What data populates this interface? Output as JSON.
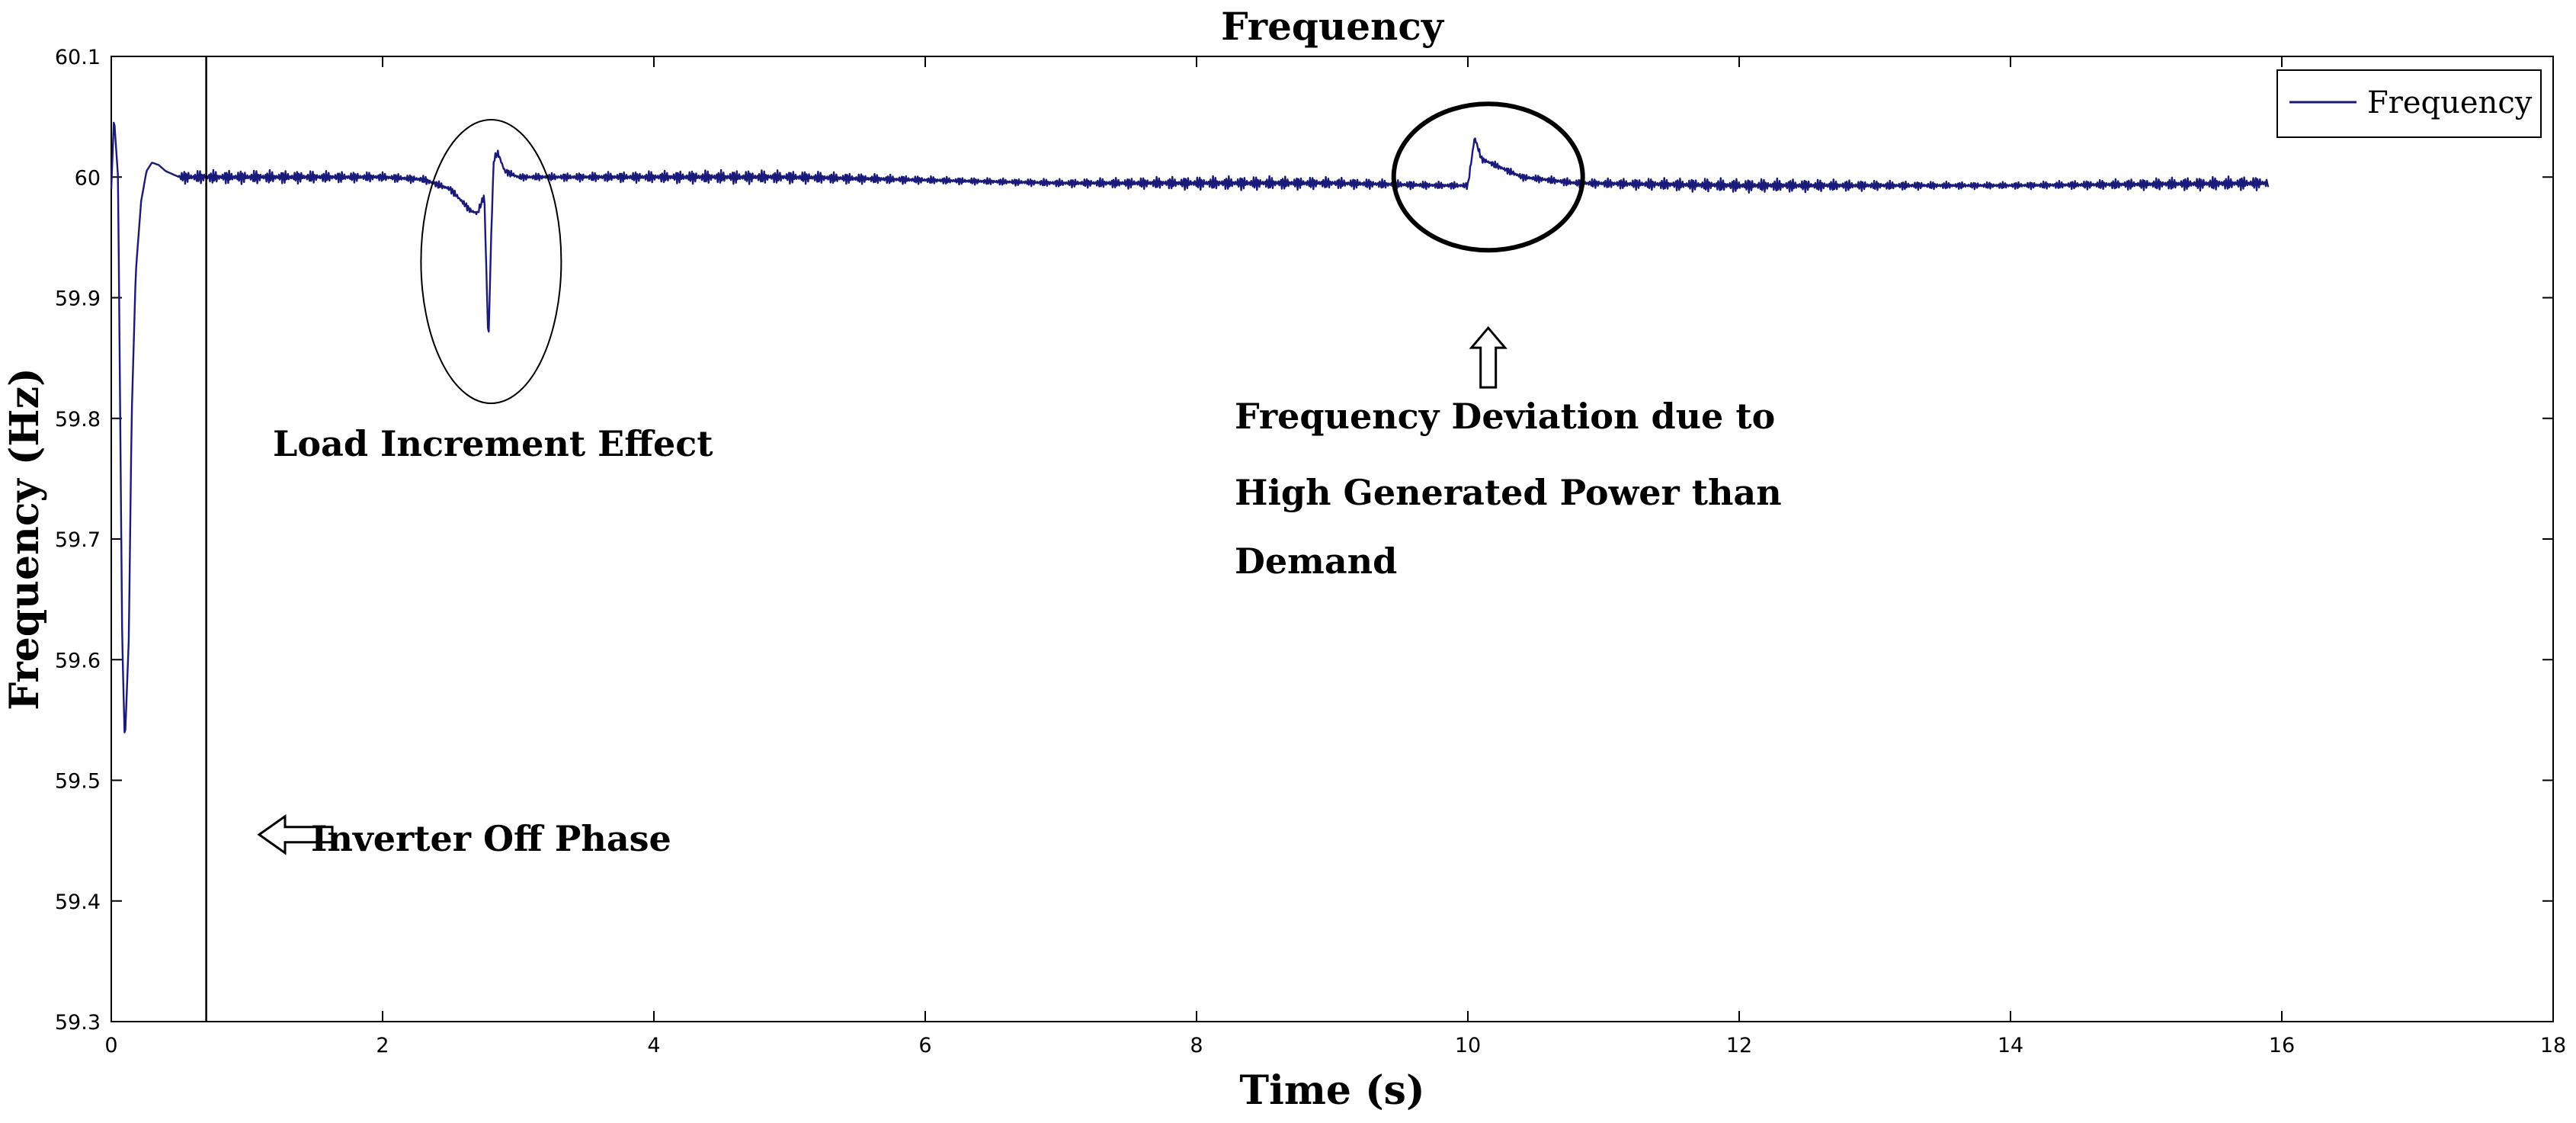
{
  "chart_data": {
    "type": "line",
    "title": "Frequency",
    "xlabel": "Time (s)",
    "ylabel": "Frequency (Hz)",
    "xlim": [
      0,
      18
    ],
    "ylim": [
      59.3,
      60.1
    ],
    "x_ticks": [
      0,
      2,
      4,
      6,
      8,
      10,
      12,
      14,
      16,
      18
    ],
    "y_ticks": [
      59.3,
      59.4,
      59.5,
      59.6,
      59.7,
      59.8,
      59.9,
      60,
      60.1
    ],
    "x_tick_labels": [
      "0",
      "2",
      "4",
      "6",
      "8",
      "10",
      "12",
      "14",
      "16",
      "18"
    ],
    "y_tick_labels": [
      "59.3",
      "59.4",
      "59.5",
      "59.6",
      "59.7",
      "59.8",
      "59.9",
      "60",
      "60.1"
    ],
    "grid": false,
    "legend": {
      "position": "top-right",
      "entries": [
        "Frequency"
      ]
    },
    "line_color": "#1a1a7a",
    "series": [
      {
        "name": "Frequency",
        "x": [
          0,
          0.02,
          0.05,
          0.08,
          0.1,
          0.13,
          0.15,
          0.18,
          0.22,
          0.26,
          0.3,
          0.35,
          0.4,
          0.5,
          0.6,
          0.7,
          1.0,
          1.5,
          2.0,
          2.3,
          2.5,
          2.6,
          2.65,
          2.7,
          2.75,
          2.78,
          2.8,
          2.82,
          2.85,
          2.9,
          3.0,
          3.5,
          5.0,
          7.0,
          9.0,
          9.8,
          10.0,
          10.05,
          10.1,
          10.2,
          10.4,
          10.8,
          12.0,
          14.0,
          15.9
        ],
        "y": [
          59.99,
          60.05,
          60.0,
          59.62,
          59.53,
          59.62,
          59.8,
          59.92,
          59.98,
          60.005,
          60.012,
          60.01,
          60.005,
          60.0,
          60.0,
          60.0,
          60.0,
          60.0,
          60.0,
          59.998,
          59.99,
          59.978,
          59.972,
          59.97,
          59.985,
          59.86,
          59.95,
          60.015,
          60.02,
          60.005,
          60.0,
          60.0,
          60.0,
          59.995,
          59.995,
          59.993,
          59.993,
          60.033,
          60.015,
          60.01,
          60.0,
          59.995,
          59.993,
          59.993,
          59.995
        ]
      }
    ],
    "annotations": {
      "load_increment": "Load Increment Effect",
      "freq_deviation_lines": [
        "Frequency Deviation due to",
        "High Generated Power than",
        "Demand"
      ],
      "inverter_off": "Inverter Off Phase"
    },
    "inverter_off_time": 0.7,
    "load_increment_ellipse_center": {
      "x": 2.8,
      "y": 59.93
    },
    "freq_deviation_ellipse_center": {
      "x": 10.15,
      "y": 60.0
    },
    "up_arrow_at": {
      "x": 10.15,
      "y": 59.875
    },
    "left_arrow_at": {
      "x": 1.0,
      "y": 59.455
    }
  }
}
